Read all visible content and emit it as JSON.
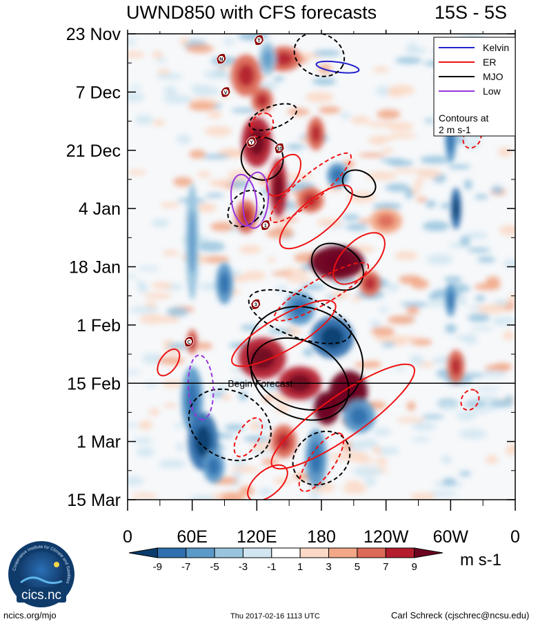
{
  "chart_data": {
    "type": "heatmap",
    "title": "UWND850 with CFS forecasts",
    "subtitle": "15S - 5S",
    "x_tick_labels": [
      "0",
      "60E",
      "120E",
      "180",
      "120W",
      "60W",
      "0"
    ],
    "x_tick_values_deg_east": [
      0,
      60,
      120,
      180,
      240,
      300,
      360
    ],
    "xlim": [
      0,
      360
    ],
    "y_tick_labels": [
      "23 Nov",
      "7 Dec",
      "21 Dec",
      "4 Jan",
      "18 Jan",
      "1 Feb",
      "15 Feb",
      "1 Mar",
      "15 Mar"
    ],
    "y_tick_day_offsets": [
      0,
      14,
      28,
      42,
      56,
      70,
      84,
      98,
      112
    ],
    "ylim_days": [
      0,
      112
    ],
    "colorbar_levels": [
      -9,
      -7,
      -5,
      -3,
      -1,
      1,
      3,
      5,
      7,
      9
    ],
    "colorbar_colors": [
      "#0a3d6e",
      "#2f6fad",
      "#5b99c9",
      "#98c4de",
      "#d2e6f1",
      "#ffffff",
      "#fbd9c6",
      "#f2a887",
      "#dd6a56",
      "#b31d2e",
      "#6d0520"
    ],
    "colorbar_units": "m s-1",
    "contour_note": "Contours at 2 m s-1",
    "legend": [
      {
        "name": "Kelvin",
        "color": "#2222cc"
      },
      {
        "name": "ER",
        "color": "#ee1111"
      },
      {
        "name": "MJO",
        "color": "#000000"
      },
      {
        "name": "Low",
        "color": "#9933dd"
      }
    ],
    "begin_forecast_label": "Begin Forecast",
    "begin_forecast_day": 84,
    "storm_markers": [
      {
        "label": "T",
        "lon": 122,
        "day": 1.5
      },
      {
        "label": "N",
        "lon": 87,
        "day": 6
      },
      {
        "label": "V",
        "lon": 91,
        "day": 14
      },
      {
        "label": "Y",
        "lon": 115,
        "day": 26
      },
      {
        "label": "10",
        "lon": 141,
        "day": 27.5
      },
      {
        "label": "1",
        "lon": 128,
        "day": 46
      },
      {
        "label": "3",
        "lon": 119,
        "day": 65
      },
      {
        "label": "C",
        "lon": 57,
        "day": 74
      }
    ],
    "features": {
      "positive": [
        {
          "lon": 110,
          "day": 10,
          "rx": 14,
          "ry": 5,
          "v": 6
        },
        {
          "lon": 145,
          "day": 6,
          "rx": 16,
          "ry": 3,
          "v": 7
        },
        {
          "lon": 125,
          "day": 16,
          "rx": 10,
          "ry": 3,
          "v": 6
        },
        {
          "lon": 175,
          "day": 24,
          "rx": 8,
          "ry": 4,
          "v": 7
        },
        {
          "lon": 120,
          "day": 26,
          "rx": 14,
          "ry": 6,
          "v": 8
        },
        {
          "lon": 140,
          "day": 37,
          "rx": 8,
          "ry": 7,
          "v": 9
        },
        {
          "lon": 110,
          "day": 44,
          "rx": 10,
          "ry": 4,
          "v": 6
        },
        {
          "lon": 170,
          "day": 40,
          "rx": 12,
          "ry": 3,
          "v": 6
        },
        {
          "lon": 195,
          "day": 55,
          "rx": 25,
          "ry": 4,
          "v": 10
        },
        {
          "lon": 225,
          "day": 60,
          "rx": 10,
          "ry": 3,
          "v": 6
        },
        {
          "lon": 125,
          "day": 78,
          "rx": 22,
          "ry": 5,
          "v": 9
        },
        {
          "lon": 160,
          "day": 84,
          "rx": 20,
          "ry": 4,
          "v": 8
        },
        {
          "lon": 205,
          "day": 86,
          "rx": 18,
          "ry": 5,
          "v": 11
        },
        {
          "lon": 185,
          "day": 90,
          "rx": 12,
          "ry": 4,
          "v": 10
        },
        {
          "lon": 305,
          "day": 80,
          "rx": 8,
          "ry": 4,
          "v": 7
        },
        {
          "lon": 60,
          "day": 74,
          "rx": 5,
          "ry": 3,
          "v": 6
        },
        {
          "lon": 145,
          "day": 98,
          "rx": 12,
          "ry": 4,
          "v": 6
        },
        {
          "lon": 240,
          "day": 45,
          "rx": 15,
          "ry": 3,
          "v": 5
        }
      ],
      "negative": [
        {
          "lon": 60,
          "day": 88,
          "rx": 10,
          "ry": 8,
          "v": -6
        },
        {
          "lon": 70,
          "day": 98,
          "rx": 14,
          "ry": 7,
          "v": -8
        },
        {
          "lon": 80,
          "day": 104,
          "rx": 10,
          "ry": 4,
          "v": -6
        },
        {
          "lon": 190,
          "day": 73,
          "rx": 20,
          "ry": 5,
          "v": -7
        },
        {
          "lon": 160,
          "day": 66,
          "rx": 14,
          "ry": 4,
          "v": -6
        },
        {
          "lon": 175,
          "day": 102,
          "rx": 10,
          "ry": 7,
          "v": -6
        },
        {
          "lon": 300,
          "day": 26,
          "rx": 5,
          "ry": 5,
          "v": -6
        },
        {
          "lon": 305,
          "day": 42,
          "rx": 5,
          "ry": 5,
          "v": -7
        },
        {
          "lon": 300,
          "day": 64,
          "rx": 5,
          "ry": 4,
          "v": -5
        },
        {
          "lon": 195,
          "day": 34,
          "rx": 10,
          "ry": 3,
          "v": -5
        },
        {
          "lon": 130,
          "day": 6,
          "rx": 8,
          "ry": 4,
          "v": -4
        },
        {
          "lon": 60,
          "day": 50,
          "rx": 6,
          "ry": 14,
          "v": -4
        },
        {
          "lon": 90,
          "day": 60,
          "rx": 8,
          "ry": 5,
          "v": -5
        },
        {
          "lon": 215,
          "day": 92,
          "rx": 15,
          "ry": 4,
          "v": -5
        }
      ]
    },
    "contours": [
      {
        "model": "Kelvin",
        "style": "solid",
        "lon": 195,
        "day": 8,
        "rx": 20,
        "ry": 1.2,
        "rot": 8
      },
      {
        "model": "MJO",
        "style": "solid",
        "lon": 125,
        "day": 30,
        "rx": 20,
        "ry": 5,
        "rot": 60
      },
      {
        "model": "MJO",
        "style": "solid",
        "lon": 195,
        "day": 56,
        "rx": 26,
        "ry": 5,
        "rot": 35
      },
      {
        "model": "MJO",
        "style": "solid",
        "lon": 160,
        "day": 83,
        "rx": 48,
        "ry": 9,
        "rot": 28
      },
      {
        "model": "MJO",
        "style": "solid",
        "lon": 165,
        "day": 78,
        "rx": 55,
        "ry": 12,
        "rot": 25
      },
      {
        "model": "MJO",
        "style": "solid",
        "lon": 215,
        "day": 36,
        "rx": 16,
        "ry": 3,
        "rot": 25
      },
      {
        "model": "MJO",
        "style": "dashed",
        "lon": 178,
        "day": 5,
        "rx": 24,
        "ry": 5,
        "rot": 25
      },
      {
        "model": "MJO",
        "style": "dashed",
        "lon": 110,
        "day": 42,
        "rx": 14,
        "ry": 5,
        "rot": 45
      },
      {
        "model": "MJO",
        "style": "dashed",
        "lon": 160,
        "day": 68,
        "rx": 50,
        "ry": 5,
        "rot": 20
      },
      {
        "model": "MJO",
        "style": "dashed",
        "lon": 95,
        "day": 94,
        "rx": 40,
        "ry": 8,
        "rot": 28
      },
      {
        "model": "MJO",
        "style": "dashed",
        "lon": 180,
        "day": 102,
        "rx": 28,
        "ry": 6,
        "rot": -35
      },
      {
        "model": "MJO",
        "style": "dashed",
        "lon": 135,
        "day": 20,
        "rx": 10,
        "ry": 6,
        "rot": 70
      },
      {
        "model": "ER",
        "style": "solid",
        "lon": 145,
        "day": 34,
        "rx": 22,
        "ry": 3,
        "rot": -55
      },
      {
        "model": "ER",
        "style": "solid",
        "lon": 175,
        "day": 44,
        "rx": 42,
        "ry": 4,
        "rot": -40
      },
      {
        "model": "ER",
        "style": "solid",
        "lon": 215,
        "day": 54,
        "rx": 30,
        "ry": 4,
        "rot": -45
      },
      {
        "model": "ER",
        "style": "solid",
        "lon": 145,
        "day": 72,
        "rx": 55,
        "ry": 4,
        "rot": -30
      },
      {
        "model": "ER",
        "style": "solid",
        "lon": 200,
        "day": 92,
        "rx": 80,
        "ry": 5,
        "rot": -35
      },
      {
        "model": "ER",
        "style": "solid",
        "lon": 130,
        "day": 108,
        "rx": 22,
        "ry": 3,
        "rot": -40
      },
      {
        "model": "ER",
        "style": "solid",
        "lon": 38,
        "day": 79,
        "rx": 14,
        "ry": 2,
        "rot": -55
      },
      {
        "model": "ER",
        "style": "dashed",
        "lon": 170,
        "day": 37,
        "rx": 48,
        "ry": 3,
        "rot": -40
      },
      {
        "model": "ER",
        "style": "dashed",
        "lon": 180,
        "day": 62,
        "rx": 50,
        "ry": 3,
        "rot": -30
      },
      {
        "model": "ER",
        "style": "dashed",
        "lon": 180,
        "day": 103,
        "rx": 32,
        "ry": 3,
        "rot": -55
      },
      {
        "model": "ER",
        "style": "dashed",
        "lon": 112,
        "day": 97,
        "rx": 20,
        "ry": 2.5,
        "rot": -60
      },
      {
        "model": "ER",
        "style": "dashed",
        "lon": 125,
        "day": 22,
        "rx": 12,
        "ry": 2.5,
        "rot": -60
      },
      {
        "model": "ER",
        "style": "dashed",
        "lon": 320,
        "day": 25,
        "rx": 10,
        "ry": 2,
        "rot": -60
      },
      {
        "model": "ER",
        "style": "dashed",
        "lon": 318,
        "day": 88,
        "rx": 10,
        "ry": 2,
        "rot": -60
      },
      {
        "model": "Low",
        "style": "solid",
        "lon": 108,
        "day": 40,
        "rx": 24,
        "ry": 3,
        "rot": 82
      },
      {
        "model": "Low",
        "style": "solid",
        "lon": 119,
        "day": 40,
        "rx": 26,
        "ry": 3,
        "rot": 95
      },
      {
        "model": "Low",
        "style": "dashed",
        "lon": 68,
        "day": 85,
        "rx": 30,
        "ry": 3,
        "rot": 87
      }
    ]
  },
  "footer": {
    "left": "ncics.org/mjo",
    "center": "Thu 2017-02-16 1113 UTC",
    "right": "Carl Schreck (cjschrec@ncsu.edu)"
  },
  "logo": {
    "text": "cics.nc",
    "ring_text": "Cooperative Institute for Climate and Satellites"
  }
}
